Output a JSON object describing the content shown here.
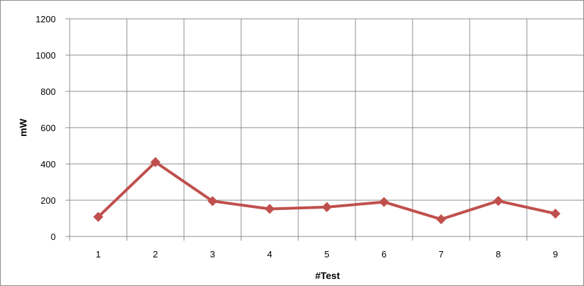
{
  "chart_data": {
    "type": "line",
    "title": "",
    "xlabel": "#Test",
    "ylabel": "mW",
    "categories": [
      "1",
      "2",
      "3",
      "4",
      "5",
      "6",
      "7",
      "8",
      "9"
    ],
    "series": [
      {
        "values": [
          108,
          410,
          195,
          152,
          162,
          190,
          95,
          196,
          126
        ]
      }
    ],
    "ylim": [
      0,
      1200
    ],
    "yticks": [
      "0",
      "200",
      "400",
      "600",
      "800",
      "1000",
      "1200"
    ],
    "grid": true,
    "legend": "none",
    "colors": {
      "line": "#c0504d",
      "grid": "#8c8c8c",
      "axis": "#8c8c8c"
    }
  }
}
